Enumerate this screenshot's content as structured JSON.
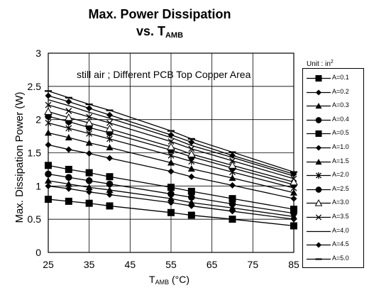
{
  "title": {
    "line1": "Max. Power Dissipation",
    "line2_prefix": "vs. T",
    "line2_sub": "AMB"
  },
  "annotation": "still air ; Different PCB Top Copper Area",
  "legend_title": {
    "text": "Unit : in",
    "sup": "2"
  },
  "xlabel": {
    "prefix": "T",
    "sub": "AMB",
    "suffix": " (°C)"
  },
  "ylabel": "Max. Dissipation Power (W)",
  "chart_data": {
    "type": "line",
    "title": "Max. Power Dissipation vs. TAMB",
    "xlabel": "TAMB (°C)",
    "ylabel": "Max. Dissipation Power (W)",
    "x": [
      25,
      30,
      35,
      40,
      55,
      60,
      70,
      85
    ],
    "xlim": [
      25,
      85
    ],
    "xticks": [
      25,
      35,
      45,
      55,
      65,
      75,
      85
    ],
    "ylim": [
      0,
      3
    ],
    "yticks": [
      0,
      0.5,
      1,
      1.5,
      2,
      2.5,
      3
    ],
    "grid": true,
    "legend_placement": "right",
    "series": [
      {
        "name": "A=0.1",
        "marker": "square",
        "values": [
          0.8,
          0.77,
          0.74,
          0.7,
          0.6,
          0.56,
          0.5,
          0.4
        ]
      },
      {
        "name": "A=0.2",
        "marker": "diamond",
        "values": [
          1.0,
          0.96,
          0.91,
          0.87,
          0.75,
          0.7,
          0.62,
          0.5
        ]
      },
      {
        "name": "A=0.3",
        "marker": "triangle",
        "values": [
          1.08,
          1.03,
          0.98,
          0.94,
          0.81,
          0.75,
          0.67,
          0.54
        ]
      },
      {
        "name": "A=0.4",
        "marker": "circle",
        "values": [
          1.18,
          1.13,
          1.08,
          1.03,
          0.88,
          0.83,
          0.73,
          0.59
        ]
      },
      {
        "name": "A=0.5",
        "marker": "square",
        "values": [
          1.31,
          1.25,
          1.2,
          1.14,
          0.98,
          0.92,
          0.81,
          0.65
        ]
      },
      {
        "name": "A=1.0",
        "marker": "diamond",
        "values": [
          1.62,
          1.55,
          1.49,
          1.42,
          1.22,
          1.14,
          1.01,
          0.81
        ]
      },
      {
        "name": "A=1.5",
        "marker": "triangle",
        "values": [
          1.8,
          1.73,
          1.65,
          1.58,
          1.35,
          1.26,
          1.12,
          0.9
        ]
      },
      {
        "name": "A=2.0",
        "marker": "star",
        "values": [
          1.95,
          1.87,
          1.79,
          1.71,
          1.46,
          1.37,
          1.21,
          0.97
        ]
      },
      {
        "name": "A=2.5",
        "marker": "circle",
        "values": [
          2.05,
          1.97,
          1.88,
          1.8,
          1.54,
          1.44,
          1.27,
          1.02
        ]
      },
      {
        "name": "A=3.0",
        "marker": "open-triangle",
        "values": [
          2.12,
          2.03,
          1.95,
          1.86,
          1.59,
          1.48,
          1.31,
          1.06
        ]
      },
      {
        "name": "A=3.5",
        "marker": "x",
        "values": [
          2.22,
          2.13,
          2.04,
          1.95,
          1.67,
          1.56,
          1.38,
          1.11
        ]
      },
      {
        "name": "A=4.0",
        "marker": "none",
        "values": [
          2.3,
          2.21,
          2.11,
          2.02,
          1.73,
          1.61,
          1.43,
          1.15
        ]
      },
      {
        "name": "A=4.5",
        "marker": "diamond",
        "values": [
          2.36,
          2.27,
          2.17,
          2.07,
          1.77,
          1.66,
          1.46,
          1.18
        ]
      },
      {
        "name": "A=5.0",
        "marker": "dash",
        "values": [
          2.43,
          2.33,
          2.23,
          2.14,
          1.83,
          1.71,
          1.51,
          1.21
        ]
      }
    ]
  }
}
